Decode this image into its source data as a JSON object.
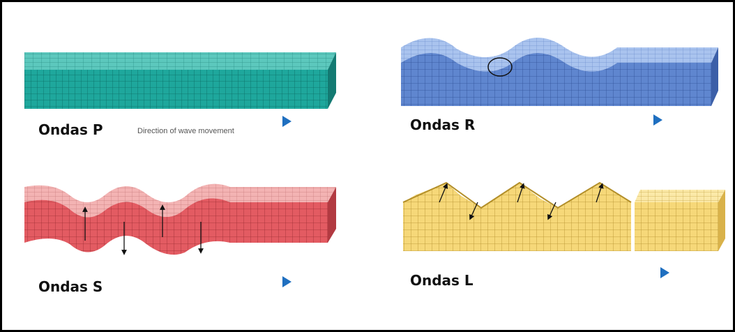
{
  "panels": [
    {
      "label": "Ondas P",
      "caption": "Direction of wave movement"
    },
    {
      "label": "Ondas R"
    },
    {
      "label": "Ondas S"
    },
    {
      "label": "Ondas L"
    }
  ]
}
